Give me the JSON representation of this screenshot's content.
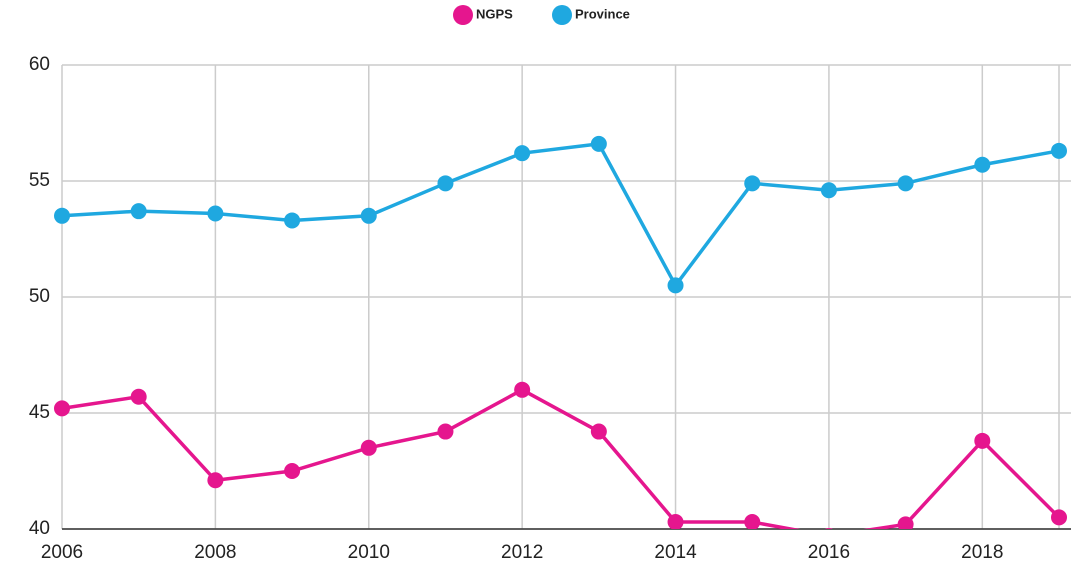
{
  "chart_data": {
    "type": "line",
    "x": [
      2006,
      2007,
      2008,
      2009,
      2010,
      2011,
      2012,
      2013,
      2014,
      2015,
      2016,
      2017,
      2018,
      2019
    ],
    "series": [
      {
        "name": "NGPS",
        "color": "#e5168e",
        "values": [
          45.2,
          45.7,
          42.1,
          42.5,
          43.5,
          44.2,
          46.0,
          44.2,
          40.3,
          40.3,
          39.7,
          40.2,
          43.8,
          40.5
        ]
      },
      {
        "name": "Province",
        "color": "#1fa8e0",
        "values": [
          53.5,
          53.7,
          53.6,
          53.3,
          53.5,
          54.9,
          56.2,
          56.6,
          50.5,
          54.9,
          54.6,
          54.9,
          55.7,
          56.3
        ]
      }
    ],
    "xlim": [
      2006,
      2019
    ],
    "xticks": [
      2006,
      2008,
      2010,
      2012,
      2014,
      2016,
      2018
    ],
    "ylim": [
      40,
      60
    ],
    "yticks": [
      40,
      45,
      50,
      55,
      60
    ],
    "grid": true,
    "legend": "top"
  }
}
